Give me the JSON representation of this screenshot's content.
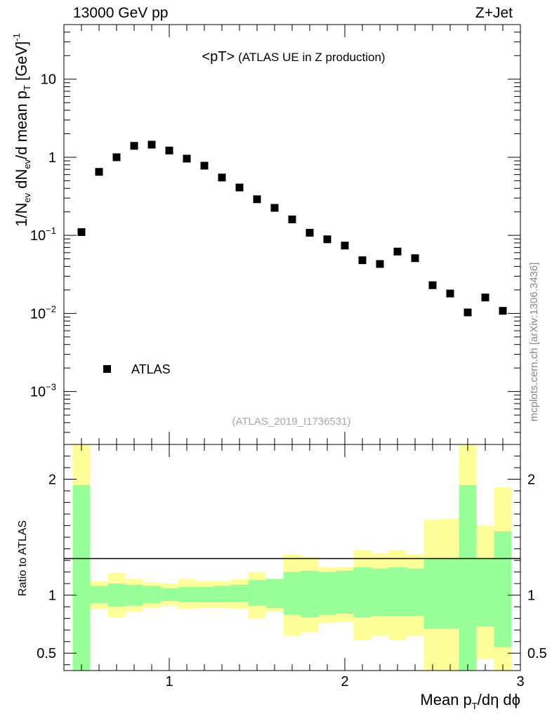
{
  "chart_data": [
    {
      "type": "scatter",
      "name": "main-panel",
      "top_left_label": "13000 GeV pp",
      "top_right_label": "Z+Jet",
      "title_main": "<pT>",
      "title_sub": "(ATLAS UE in Z production)",
      "ylabel": {
        "p1": "1/N",
        "s1": "ev",
        "p2": " dN",
        "s2": "ev",
        "p3": "/d mean p",
        "s3": "T",
        "p4": " [GeV]",
        "sup": "-1"
      },
      "yscale": "log",
      "ylim": [
        0.00021,
        50
      ],
      "xlim": [
        0.4,
        3.0
      ],
      "yticks": [
        {
          "value": 10,
          "label": "10",
          "exp": ""
        },
        {
          "value": 1,
          "label": "1",
          "exp": ""
        },
        {
          "value": 0.1,
          "label": "10",
          "exp": "−1"
        },
        {
          "value": 0.01,
          "label": "10",
          "exp": "−2"
        },
        {
          "value": 0.001,
          "label": "10",
          "exp": "−3"
        }
      ],
      "series": [
        {
          "name": "ATLAS",
          "x": [
            0.5,
            0.6,
            0.7,
            0.8,
            0.9,
            1.0,
            1.1,
            1.2,
            1.3,
            1.4,
            1.5,
            1.6,
            1.7,
            1.8,
            1.9,
            2.0,
            2.1,
            2.2,
            2.3,
            2.4,
            2.5,
            2.6,
            2.7,
            2.8,
            2.9
          ],
          "y": [
            0.11,
            0.65,
            1.0,
            1.4,
            1.45,
            1.22,
            0.96,
            0.78,
            0.55,
            0.41,
            0.29,
            0.225,
            0.16,
            0.108,
            0.089,
            0.074,
            0.048,
            0.043,
            0.062,
            0.051,
            0.023,
            0.018,
            0.0103,
            0.016,
            0.0108
          ]
        }
      ],
      "legend": "bottom-left",
      "watermark": "(ATLAS_2019_I1736531)",
      "side_label": "mcplots.cern.ch [arXiv:1306.3436]"
    },
    {
      "type": "area",
      "name": "ratio-panel",
      "ylabel": "Ratio to ATLAS",
      "ylim": [
        0.35,
        2.3
      ],
      "xlim": [
        0.4,
        3.0
      ],
      "yticks": [
        {
          "value": 2,
          "label": "2"
        },
        {
          "value": 1,
          "label": "1"
        },
        {
          "value": 0.5,
          "label": "0.5"
        }
      ],
      "xticks": [
        {
          "value": 1,
          "label": "1"
        },
        {
          "value": 2,
          "label": "2"
        },
        {
          "value": 3,
          "label": "3"
        }
      ],
      "xlabel": {
        "p1": "Mean p",
        "s1": "T",
        "p2": "/dη dϕ"
      },
      "bins": [
        0.45,
        0.55,
        0.65,
        0.75,
        0.85,
        0.95,
        1.05,
        1.15,
        1.25,
        1.35,
        1.45,
        1.55,
        1.65,
        1.75,
        1.85,
        1.95,
        2.05,
        2.15,
        2.25,
        2.35,
        2.45,
        2.55,
        2.65,
        2.75,
        2.85,
        2.95
      ],
      "band_1sigma": {
        "lo": [
          0.35,
          0.93,
          0.9,
          0.91,
          0.93,
          0.95,
          0.94,
          0.94,
          0.94,
          0.94,
          0.91,
          0.89,
          0.83,
          0.81,
          0.83,
          0.84,
          0.81,
          0.82,
          0.82,
          0.82,
          0.71,
          0.71,
          0.35,
          0.73,
          0.55
        ],
        "hi": [
          1.95,
          1.08,
          1.1,
          1.09,
          1.08,
          1.06,
          1.07,
          1.07,
          1.08,
          1.09,
          1.13,
          1.14,
          1.2,
          1.21,
          1.2,
          1.21,
          1.24,
          1.23,
          1.24,
          1.23,
          1.32,
          1.32,
          1.95,
          1.32,
          1.55
        ]
      },
      "band_2sigma": {
        "lo": [
          0.35,
          0.88,
          0.81,
          0.86,
          0.89,
          0.91,
          0.88,
          0.89,
          0.89,
          0.88,
          0.8,
          0.86,
          0.65,
          0.68,
          0.76,
          0.77,
          0.61,
          0.65,
          0.61,
          0.65,
          0.35,
          0.35,
          0.35,
          0.45,
          0.35
        ],
        "hi": [
          2.3,
          1.12,
          1.19,
          1.14,
          1.11,
          1.1,
          1.14,
          1.12,
          1.12,
          1.14,
          1.2,
          1.14,
          1.35,
          1.33,
          1.24,
          1.24,
          1.39,
          1.36,
          1.39,
          1.35,
          1.65,
          1.66,
          2.3,
          1.6,
          1.93
        ]
      },
      "colors": {
        "band_1sigma": "#99ff99",
        "band_2sigma": "#ffff99",
        "reference_line": "#000000"
      }
    }
  ]
}
